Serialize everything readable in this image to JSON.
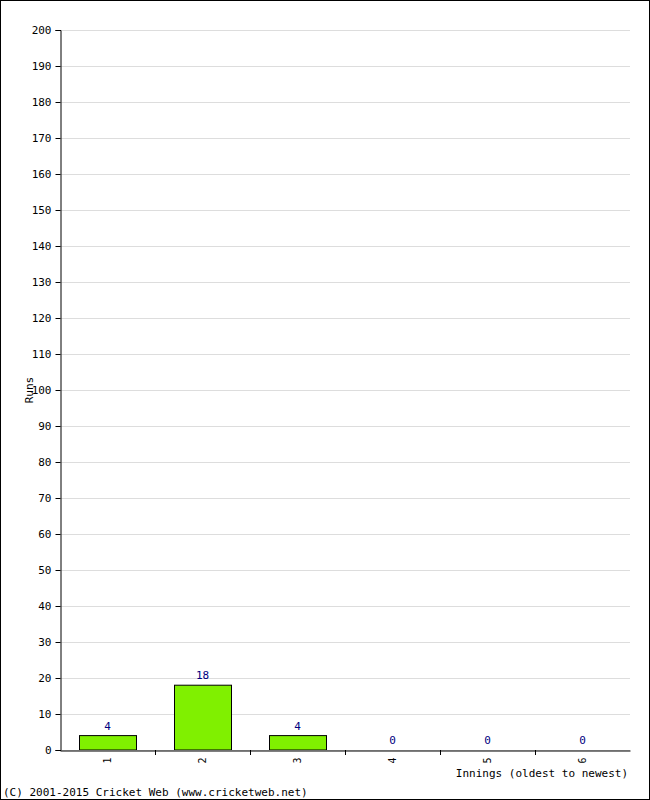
{
  "chart_data": {
    "type": "bar",
    "x_label": "Innings (oldest to newest)",
    "y_label": "Runs",
    "annotations": [
      "(C) 2001-2015 Cricket Web (www.cricketweb.net)"
    ],
    "categories": [
      "1",
      "2",
      "3",
      "4",
      "5",
      "6"
    ],
    "values": [
      4,
      18,
      4,
      0,
      0,
      0
    ],
    "color": "#80f000",
    "ylim": [
      0,
      200
    ],
    "yticks": [
      0,
      10,
      20,
      30,
      40,
      50,
      60,
      70,
      80,
      90,
      100,
      110,
      120,
      130,
      140,
      150,
      160,
      170,
      180,
      190,
      200
    ],
    "grid": true,
    "data_labels": true
  }
}
